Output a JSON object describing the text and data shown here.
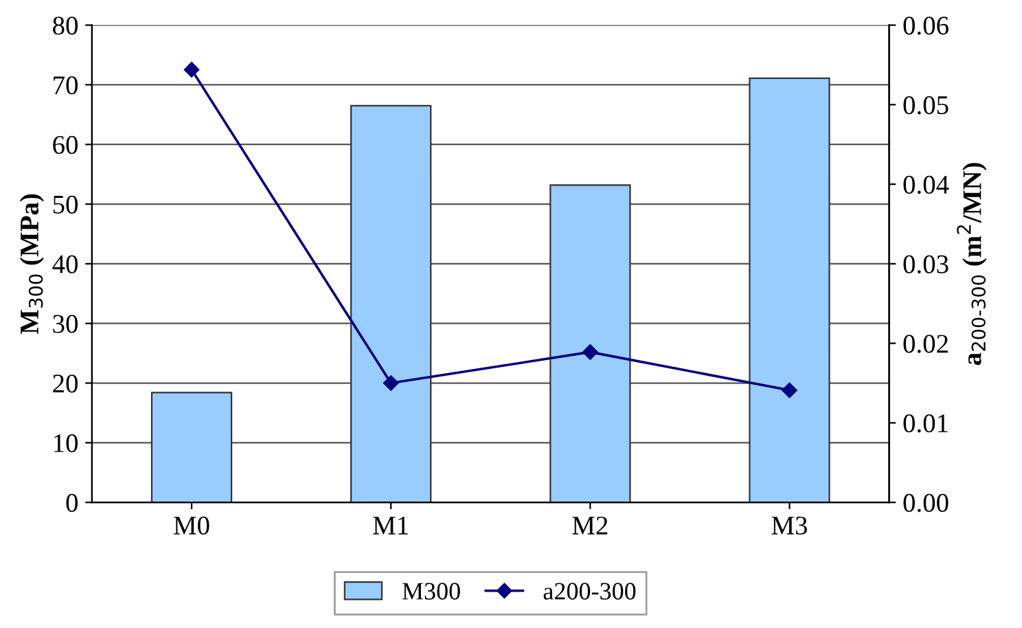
{
  "chart_data": {
    "type": "bar",
    "categories": [
      "M0",
      "M1",
      "M2",
      "M3"
    ],
    "ylabel": "M$_{300}$ (MPa)",
    "y2label": "a$_{200-300}$ (m$^{2}$/MN)",
    "series": [
      {
        "name": "M300",
        "color": "#99ccff",
        "values": [
          18.4,
          66.5,
          53.2,
          71.1
        ]
      },
      {
        "name": "a200-300",
        "type": "line",
        "axis": "y2",
        "color": "#000080",
        "values": [
          0.0544,
          0.015,
          0.0189,
          0.0141
        ]
      }
    ],
    "ylim": [
      0,
      80
    ],
    "yticks": [
      0,
      10,
      20,
      30,
      40,
      50,
      60,
      70,
      80
    ],
    "y2lim": [
      0,
      0.06
    ],
    "y2ticks": [
      {
        "value": 0,
        "label": "0.00"
      },
      {
        "value": 0.01,
        "label": "0.01"
      },
      {
        "value": 0.02,
        "label": "0.02"
      },
      {
        "value": 0.03,
        "label": "0.03"
      },
      {
        "value": 0.04,
        "label": "0.04"
      },
      {
        "value": 0.05,
        "label": "0.05"
      },
      {
        "value": 0.06,
        "label": "0.06"
      }
    ],
    "grid": "y",
    "legend": "bottom",
    "marker": "diamond",
    "line_style": "solid"
  }
}
